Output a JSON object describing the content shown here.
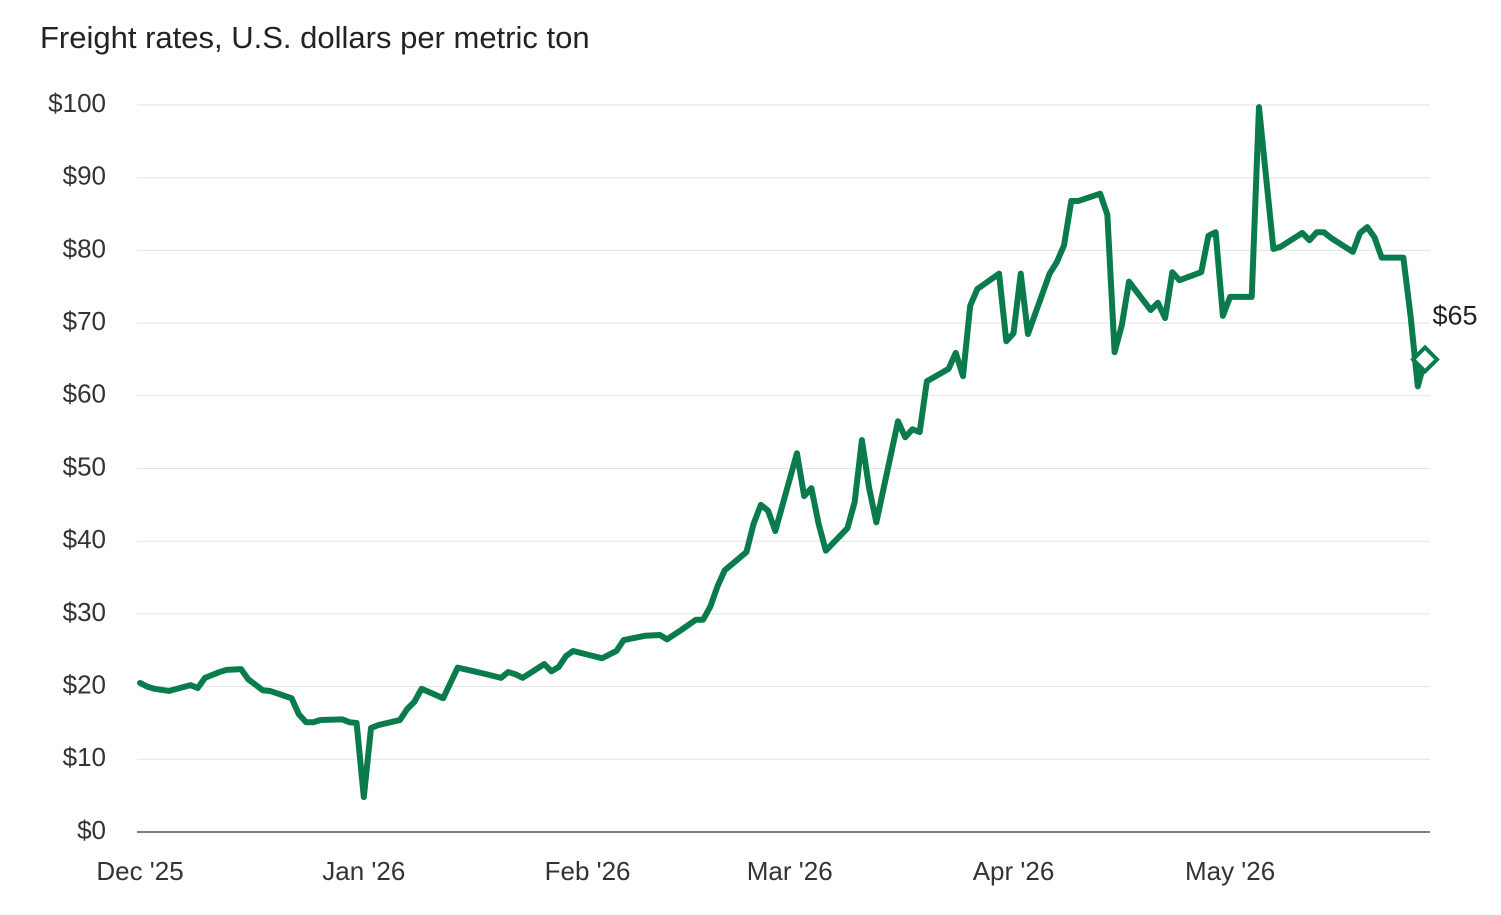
{
  "chart_data": {
    "type": "line",
    "title": "Freight rates, U.S. dollars per metric ton",
    "color": "#0a7b4c",
    "x": [
      0,
      1,
      2,
      4,
      7,
      8,
      9,
      11,
      12,
      14,
      15,
      17,
      18,
      21,
      22,
      23,
      24,
      25,
      28,
      29,
      30,
      31,
      32,
      33,
      36,
      37,
      38,
      39,
      42,
      44,
      45,
      48,
      50,
      51,
      52,
      53,
      56,
      57,
      58,
      59,
      60,
      64,
      66,
      67,
      70,
      72,
      73,
      75,
      77,
      78,
      79,
      80,
      81,
      84,
      85,
      86,
      87,
      88,
      91,
      92,
      93,
      94,
      95,
      98,
      99,
      100,
      101,
      102,
      105,
      106,
      107,
      108,
      109,
      112,
      113,
      114,
      115,
      116,
      119,
      120,
      121,
      122,
      123,
      126,
      127,
      128,
      129,
      130,
      133,
      134,
      135,
      136,
      137,
      140,
      141,
      142,
      143,
      144,
      147,
      148,
      149,
      150,
      151,
      154,
      155,
      157,
      158,
      161,
      162,
      163,
      164,
      165,
      168,
      169,
      170,
      171,
      172,
      175,
      176,
      177,
      178
    ],
    "values": [
      20.5,
      20,
      19.7,
      19.4,
      20.2,
      19.8,
      21.2,
      22,
      22.3,
      22.4,
      21,
      19.5,
      19.4,
      18.4,
      16.2,
      15.1,
      15.1,
      15.4,
      15.5,
      15.1,
      15,
      4.8,
      14.3,
      14.7,
      15.4,
      16.9,
      17.9,
      19.7,
      18.4,
      22.6,
      22.4,
      21.7,
      21.2,
      22,
      21.7,
      21.2,
      23.1,
      22.1,
      22.7,
      24.2,
      24.9,
      23.9,
      24.9,
      26.4,
      27,
      27.1,
      26.5,
      27.8,
      29.2,
      29.2,
      31,
      33.8,
      36,
      38.5,
      42.4,
      45,
      44.2,
      41.4,
      52.1,
      46.2,
      47.3,
      42.4,
      38.7,
      41.8,
      45.4,
      53.9,
      47.3,
      42.6,
      56.5,
      54.3,
      55.4,
      55,
      62,
      63.7,
      65.9,
      62.7,
      72.4,
      74.7,
      76.8,
      67.5,
      68.6,
      76.8,
      68.5,
      76.8,
      78.4,
      80.7,
      86.8,
      86.8,
      87.8,
      84.9,
      66,
      69.7,
      75.7,
      71.8,
      72.8,
      70.7,
      77,
      75.9,
      77,
      82,
      82.5,
      71,
      73.6,
      73.6,
      99.7,
      80.2,
      80.5,
      82.4,
      81.4,
      82.5,
      82.5,
      81.7,
      79.8,
      82.4,
      83.2,
      81.8,
      79,
      79,
      71,
      61.3,
      65
    ],
    "end_label": "$65",
    "xlim": [
      0,
      178
    ],
    "xticks": [
      {
        "value": 0,
        "label": "Dec '25"
      },
      {
        "value": 31,
        "label": "Jan '26"
      },
      {
        "value": 62,
        "label": "Feb '26"
      },
      {
        "value": 90,
        "label": "Mar '26"
      },
      {
        "value": 121,
        "label": "Apr '26"
      },
      {
        "value": 151,
        "label": "May '26"
      }
    ],
    "ylim": [
      0,
      100
    ],
    "yticks": [
      {
        "value": 0,
        "label": "$0"
      },
      {
        "value": 10,
        "label": "$10"
      },
      {
        "value": 20,
        "label": "$20"
      },
      {
        "value": 30,
        "label": "$30"
      },
      {
        "value": 40,
        "label": "$40"
      },
      {
        "value": 50,
        "label": "$50"
      },
      {
        "value": 60,
        "label": "$60"
      },
      {
        "value": 70,
        "label": "$70"
      },
      {
        "value": 80,
        "label": "$80"
      },
      {
        "value": 90,
        "label": "$90"
      },
      {
        "value": 100,
        "label": "$100"
      }
    ],
    "grid": true
  }
}
